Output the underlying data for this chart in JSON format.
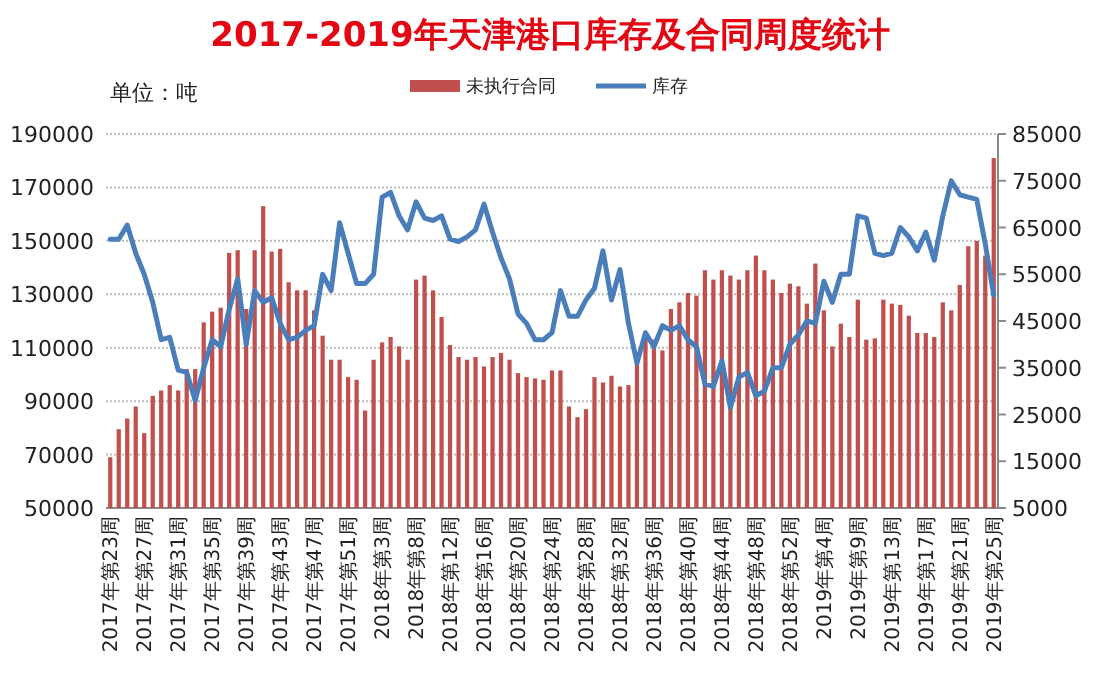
{
  "chart_data": {
    "type": "bar",
    "title": "2017-2019年天津港口库存及合同周度统计",
    "ylabel": "单位：吨",
    "categories": [
      "2017年第23周",
      null,
      null,
      null,
      "2017年第27周",
      null,
      null,
      null,
      "2017年第31周",
      null,
      null,
      null,
      "2017年第35周",
      null,
      null,
      null,
      "2017年第39周",
      null,
      null,
      null,
      "2017年第43周",
      null,
      null,
      null,
      "2017年第47周",
      null,
      null,
      null,
      "2017年第51周",
      null,
      null,
      null,
      "2018年第3周",
      null,
      null,
      null,
      "2018年第8周",
      null,
      null,
      null,
      "2018年第12周",
      null,
      null,
      null,
      "2018年第16周",
      null,
      null,
      null,
      "2018年第20周",
      null,
      null,
      null,
      "2018年第24周",
      null,
      null,
      null,
      "2018年第28周",
      null,
      null,
      null,
      "2018年第32周",
      null,
      null,
      null,
      "2018年第36周",
      null,
      null,
      null,
      "2018年第40周",
      null,
      null,
      null,
      "2018年第44周",
      null,
      null,
      null,
      "2018年第48周",
      null,
      null,
      null,
      "2018年第52周",
      null,
      null,
      null,
      "2019年第4周",
      null,
      null,
      null,
      "2019年第9周",
      null,
      null,
      null,
      "2019年第13周",
      null,
      null,
      null,
      "2019年第17周",
      null,
      null,
      null,
      "2019年第21周",
      null,
      null,
      null,
      "2019年第25周"
    ],
    "series": [
      {
        "name": "未执行合同",
        "color": "#c0504d",
        "values": [
          69000,
          79500,
          83500,
          88000,
          78000,
          92000,
          94000,
          96000,
          94000,
          102000,
          102000,
          119500,
          123500,
          125000,
          145500,
          146500,
          124500,
          146500,
          163000,
          146000,
          147000,
          134500,
          131500,
          131500,
          124000,
          114500,
          105500,
          105500,
          99000,
          98000,
          86500,
          105500,
          112000,
          114000,
          110500,
          105500,
          135500,
          137000,
          131500,
          121500,
          111000,
          106500,
          105500,
          106500,
          103000,
          106500,
          108000,
          105500,
          100500,
          99000,
          98500,
          98000,
          101500,
          101500,
          88000,
          84000,
          87000,
          99000,
          97000,
          99500,
          95500,
          96000,
          105500,
          114000,
          113000,
          109000,
          124500,
          127000,
          130500,
          129500,
          139000,
          135500,
          139000,
          137000,
          135500,
          139000,
          144500,
          139000,
          135500,
          130500,
          134000,
          133000,
          126500,
          141500,
          124000,
          110500,
          119000,
          114000,
          128000,
          113000,
          113500,
          128000,
          126500,
          126000,
          122000,
          115500,
          115500,
          114000,
          127000,
          124000,
          133500,
          148000,
          150000,
          144500,
          181000
        ]
      },
      {
        "name": "库存",
        "type": "line",
        "axis": "y2",
        "color": "#4a7ebb",
        "values": [
          62500,
          62500,
          65500,
          59500,
          55000,
          49000,
          41000,
          41500,
          34500,
          34000,
          28000,
          35000,
          41000,
          39500,
          47500,
          54000,
          40000,
          51500,
          49000,
          50000,
          44500,
          41000,
          41500,
          43000,
          44000,
          55000,
          51500,
          66000,
          59500,
          53000,
          53000,
          55000,
          71500,
          72500,
          67500,
          64500,
          70500,
          67000,
          66500,
          67500,
          62500,
          62000,
          63000,
          64500,
          70000,
          64000,
          58500,
          54000,
          46500,
          44500,
          41000,
          41000,
          42500,
          51500,
          46000,
          46000,
          49500,
          52000,
          60000,
          49500,
          56000,
          44500,
          36000,
          42500,
          39500,
          44000,
          43000,
          44000,
          41000,
          39500,
          31500,
          31000,
          36500,
          26500,
          33000,
          34000,
          29000,
          30000,
          35000,
          35000,
          40000,
          42000,
          45000,
          44500,
          53500,
          49000,
          55000,
          55000,
          67500,
          67000,
          59500,
          59000,
          59500,
          65000,
          63000,
          60000,
          64000,
          58000,
          67500,
          75000,
          72000,
          71500,
          71000,
          61500,
          50500
        ]
      }
    ],
    "ylim": [
      50000,
      190000
    ],
    "yticks": [
      50000,
      70000,
      90000,
      110000,
      130000,
      150000,
      170000,
      190000
    ],
    "y2lim": [
      5000,
      85000
    ],
    "y2ticks": [
      5000,
      15000,
      25000,
      35000,
      45000,
      55000,
      65000,
      75000,
      85000
    ],
    "grid": "y",
    "legend": "top"
  }
}
